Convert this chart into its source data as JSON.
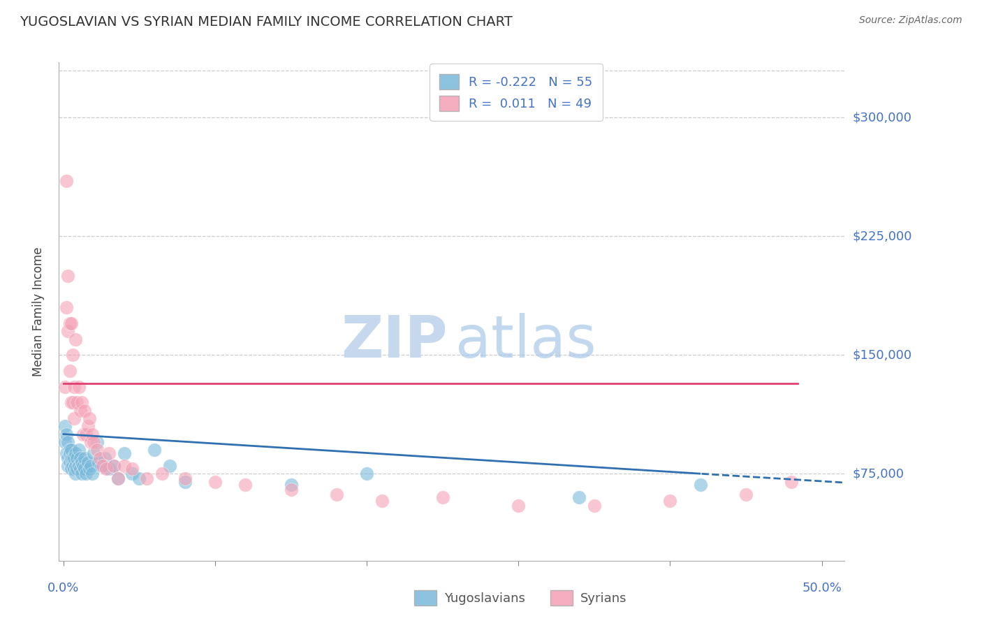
{
  "title": "YUGOSLAVIAN VS SYRIAN MEDIAN FAMILY INCOME CORRELATION CHART",
  "source": "Source: ZipAtlas.com",
  "ylabel": "Median Family Income",
  "yticks": [
    75000,
    150000,
    225000,
    300000
  ],
  "ytick_labels": [
    "$75,000",
    "$150,000",
    "$225,000",
    "$300,000"
  ],
  "ymin": 20000,
  "ymax": 335000,
  "xmin": -0.003,
  "xmax": 0.515,
  "blue_R": -0.222,
  "blue_N": 55,
  "pink_R": 0.011,
  "pink_N": 49,
  "blue_color": "#7ab9db",
  "pink_color": "#f4a0b5",
  "blue_line_color": "#3070b0",
  "pink_line_color": "#e04070",
  "legend_label_blue": "Yugoslavians",
  "legend_label_pink": "Syrians",
  "blue_x": [
    0.001,
    0.001,
    0.002,
    0.002,
    0.003,
    0.003,
    0.003,
    0.004,
    0.004,
    0.004,
    0.005,
    0.005,
    0.005,
    0.005,
    0.006,
    0.006,
    0.007,
    0.007,
    0.008,
    0.008,
    0.008,
    0.009,
    0.009,
    0.01,
    0.01,
    0.011,
    0.011,
    0.012,
    0.012,
    0.013,
    0.014,
    0.014,
    0.015,
    0.016,
    0.017,
    0.018,
    0.019,
    0.02,
    0.022,
    0.023,
    0.025,
    0.027,
    0.03,
    0.033,
    0.036,
    0.04,
    0.045,
    0.05,
    0.06,
    0.07,
    0.08,
    0.15,
    0.2,
    0.34,
    0.42
  ],
  "blue_y": [
    105000,
    95000,
    100000,
    88000,
    95000,
    85000,
    80000,
    90000,
    82000,
    88000,
    80000,
    85000,
    78000,
    90000,
    85000,
    80000,
    85000,
    78000,
    88000,
    80000,
    75000,
    85000,
    78000,
    90000,
    80000,
    85000,
    78000,
    82000,
    75000,
    80000,
    85000,
    78000,
    75000,
    82000,
    78000,
    80000,
    75000,
    88000,
    95000,
    82000,
    80000,
    85000,
    78000,
    80000,
    72000,
    88000,
    75000,
    72000,
    90000,
    80000,
    70000,
    68000,
    75000,
    60000,
    68000
  ],
  "pink_x": [
    0.001,
    0.002,
    0.002,
    0.003,
    0.003,
    0.004,
    0.004,
    0.005,
    0.005,
    0.006,
    0.006,
    0.007,
    0.007,
    0.008,
    0.009,
    0.01,
    0.011,
    0.012,
    0.013,
    0.014,
    0.015,
    0.016,
    0.017,
    0.018,
    0.019,
    0.02,
    0.022,
    0.024,
    0.026,
    0.028,
    0.03,
    0.033,
    0.036,
    0.04,
    0.045,
    0.055,
    0.065,
    0.08,
    0.1,
    0.12,
    0.15,
    0.18,
    0.21,
    0.25,
    0.3,
    0.35,
    0.4,
    0.45,
    0.48
  ],
  "pink_y": [
    130000,
    260000,
    180000,
    200000,
    165000,
    140000,
    170000,
    120000,
    170000,
    150000,
    120000,
    130000,
    110000,
    160000,
    120000,
    130000,
    115000,
    120000,
    100000,
    115000,
    100000,
    105000,
    110000,
    95000,
    100000,
    95000,
    90000,
    85000,
    80000,
    78000,
    88000,
    80000,
    72000,
    80000,
    78000,
    72000,
    75000,
    72000,
    70000,
    68000,
    65000,
    62000,
    58000,
    60000,
    55000,
    55000,
    58000,
    62000,
    70000
  ],
  "grid_color": "#cccccc",
  "background_color": "#ffffff",
  "watermark_zip_color": "#c5d8ee",
  "watermark_atlas_color": "#a8c8e8"
}
